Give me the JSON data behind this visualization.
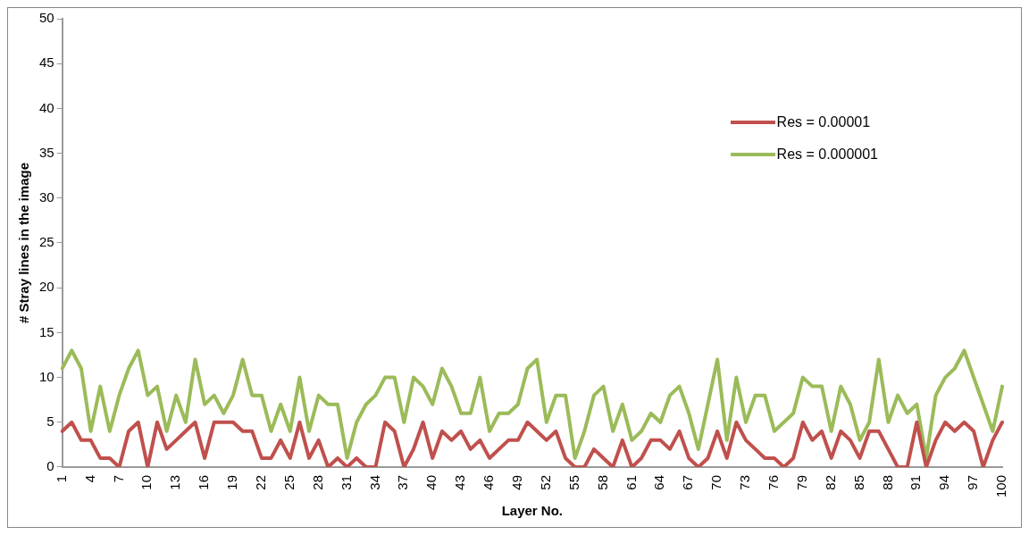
{
  "chart_data": {
    "type": "line",
    "xlabel": "Layer No.",
    "ylabel": "# Stray lines in the image",
    "categories": [
      "1",
      null,
      null,
      "4",
      null,
      null,
      "7",
      null,
      null,
      "10",
      null,
      null,
      "13",
      null,
      null,
      "16",
      null,
      null,
      "19",
      null,
      null,
      "22",
      null,
      null,
      "25",
      null,
      null,
      "28",
      null,
      null,
      "31",
      null,
      null,
      "34",
      null,
      null,
      "37",
      null,
      null,
      "40",
      null,
      null,
      "43",
      null,
      null,
      "46",
      null,
      null,
      "49",
      null,
      null,
      "52",
      null,
      null,
      "55",
      null,
      null,
      "58",
      null,
      null,
      "61",
      null,
      null,
      "64",
      null,
      null,
      "67",
      null,
      null,
      "70",
      null,
      null,
      "73",
      null,
      null,
      "76",
      null,
      null,
      "79",
      null,
      null,
      "82",
      null,
      null,
      "85",
      null,
      null,
      "88",
      null,
      null,
      "91",
      null,
      null,
      "94",
      null,
      null,
      "97",
      null,
      null,
      "100"
    ],
    "series": [
      {
        "name": "Res = 0.00001",
        "color": "#c0504d",
        "values": [
          4,
          5,
          3,
          3,
          1,
          1,
          0,
          4,
          5,
          0,
          5,
          2,
          3,
          4,
          5,
          1,
          5,
          5,
          5,
          4,
          4,
          1,
          1,
          3,
          1,
          5,
          1,
          3,
          0,
          1,
          0,
          1,
          0,
          0,
          5,
          4,
          0,
          2,
          5,
          1,
          4,
          3,
          4,
          2,
          3,
          1,
          2,
          3,
          3,
          5,
          4,
          3,
          4,
          1,
          0,
          0,
          2,
          1,
          0,
          3,
          0,
          1,
          3,
          3,
          2,
          4,
          1,
          0,
          1,
          4,
          1,
          5,
          3,
          2,
          1,
          1,
          0,
          1,
          5,
          3,
          4,
          1,
          4,
          3,
          1,
          4,
          4,
          2,
          0,
          0,
          5,
          0,
          3,
          5,
          4,
          5,
          4,
          0,
          3,
          5
        ]
      },
      {
        "name": "Res = 0.000001",
        "color": "#9bbb59",
        "values": [
          11,
          13,
          11,
          4,
          9,
          4,
          8,
          11,
          13,
          8,
          9,
          4,
          8,
          5,
          12,
          7,
          8,
          6,
          8,
          12,
          8,
          8,
          4,
          7,
          4,
          10,
          4,
          8,
          7,
          7,
          1,
          5,
          7,
          8,
          10,
          10,
          5,
          10,
          9,
          7,
          11,
          9,
          6,
          6,
          10,
          4,
          6,
          6,
          7,
          11,
          12,
          5,
          8,
          8,
          1,
          4,
          8,
          9,
          4,
          7,
          3,
          4,
          6,
          5,
          8,
          9,
          6,
          2,
          7,
          12,
          3,
          10,
          5,
          8,
          8,
          4,
          5,
          6,
          10,
          9,
          9,
          4,
          9,
          7,
          3,
          5,
          12,
          5,
          8,
          6,
          7,
          1,
          8,
          10,
          11,
          13,
          10,
          7,
          4,
          9
        ]
      }
    ],
    "ylim": [
      0,
      50
    ],
    "yticks": [
      0,
      5,
      10,
      15,
      20,
      25,
      30,
      35,
      40,
      45,
      50
    ],
    "grid": false,
    "legend": "top right",
    "marker": "none",
    "line_style": "solid"
  }
}
